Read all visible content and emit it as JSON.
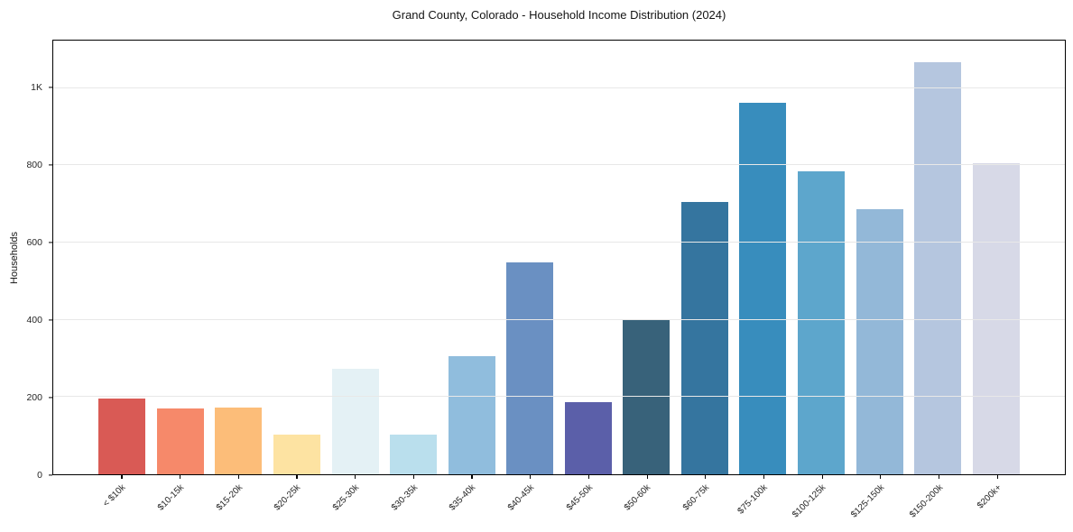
{
  "chart_data": {
    "type": "bar",
    "title": "Grand County, Colorado - Household Income Distribution (2024)",
    "xlabel": "",
    "ylabel": "Households",
    "categories": [
      "< $10k",
      "$10-15k",
      "$15-20k",
      "$20-25k",
      "$25-30k",
      "$30-35k",
      "$35-40k",
      "$40-45k",
      "$45-50k",
      "$50-60k",
      "$60-75k",
      "$75-100k",
      "$100-125k",
      "$125-150k",
      "$150-200k",
      "$200k+"
    ],
    "values": [
      195,
      170,
      173,
      103,
      274,
      102,
      305,
      549,
      187,
      399,
      705,
      962,
      784,
      686,
      1067,
      806
    ],
    "bar_colors": [
      "#d95a55",
      "#f6896a",
      "#fcbd79",
      "#fde3a2",
      "#e4f1f5",
      "#badfed",
      "#90bddd",
      "#6a90c2",
      "#5b5fa9",
      "#38627a",
      "#35759f",
      "#388dbd",
      "#5da6cc",
      "#93b8d8",
      "#b5c6df",
      "#d7d9e7"
    ],
    "ylim": [
      0,
      1123
    ],
    "yticks": [
      {
        "value": 0,
        "label": "0"
      },
      {
        "value": 200,
        "label": "200"
      },
      {
        "value": 400,
        "label": "400"
      },
      {
        "value": 600,
        "label": "600"
      },
      {
        "value": 800,
        "label": "800"
      },
      {
        "value": 1000,
        "label": "1K"
      }
    ],
    "grid": "horizontal",
    "grid_color": "#e8e8e8",
    "legend": "none",
    "background_color": "#ffffff",
    "spine_color": "#000000"
  }
}
